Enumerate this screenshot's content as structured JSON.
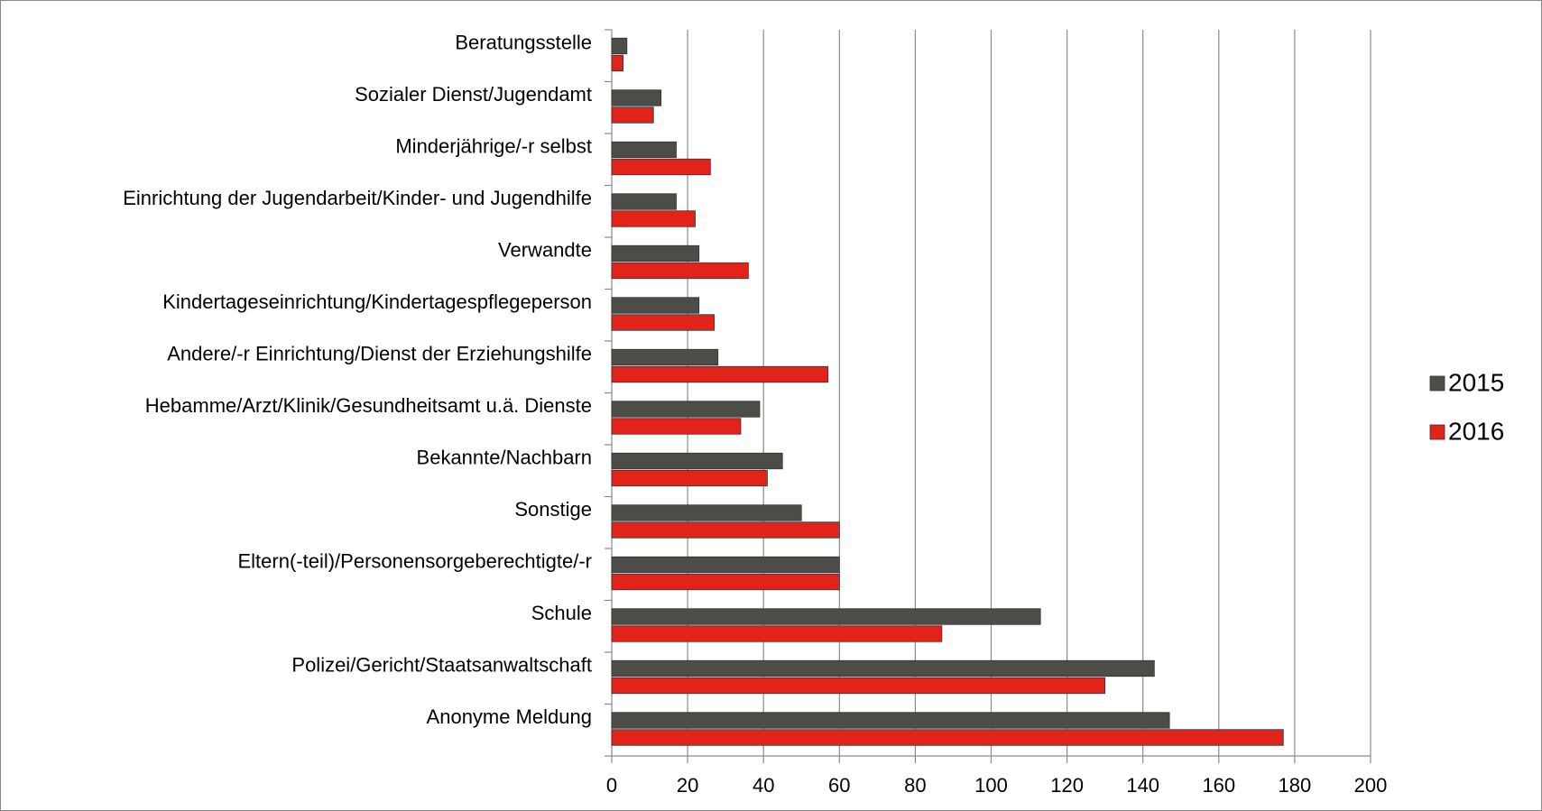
{
  "chart_data": {
    "type": "barh",
    "categories": [
      "Beratungsstelle",
      "Sozialer Dienst/Jugendamt",
      "Minderjährige/-r selbst",
      "Einrichtung der Jugendarbeit/Kinder- und Jugendhilfe",
      "Verwandte",
      "Kindertageseinrichtung/Kindertagespflegeperson",
      "Andere/-r Einrichtung/Dienst der Erziehungshilfe",
      "Hebamme/Arzt/Klinik/Gesundheitsamt u.ä. Dienste",
      "Bekannte/Nachbarn",
      "Sonstige",
      "Eltern(-teil)/Personensorgeberechtigte/-r",
      "Schule",
      "Polizei/Gericht/Staatsanwaltschaft",
      "Anonyme Meldung"
    ],
    "series": [
      {
        "name": "2015",
        "color": "#4d4d48",
        "values": [
          4,
          13,
          17,
          17,
          23,
          23,
          28,
          39,
          45,
          50,
          60,
          113,
          143,
          147
        ]
      },
      {
        "name": "2016",
        "color": "#e2231a",
        "values": [
          3,
          11,
          26,
          22,
          36,
          27,
          57,
          34,
          41,
          60,
          60,
          87,
          130,
          177
        ]
      }
    ],
    "xlim": [
      0,
      200
    ],
    "xticks": [
      0,
      20,
      40,
      60,
      80,
      100,
      120,
      140,
      160,
      180,
      200
    ],
    "grid": true,
    "legend": "right"
  }
}
